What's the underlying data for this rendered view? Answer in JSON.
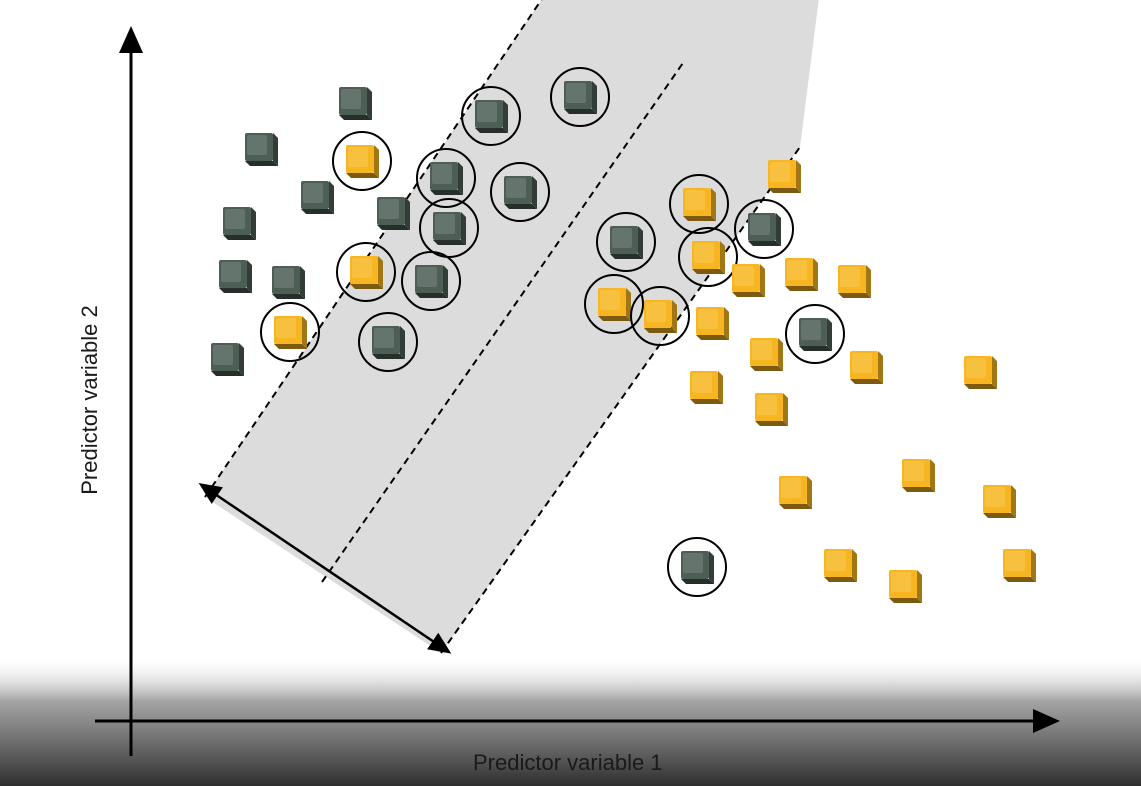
{
  "axes": {
    "x_label": "Predictor variable 1",
    "y_label": "Predictor variable 2"
  },
  "colors": {
    "dark_class": "#4d5e54",
    "yellow_class": "#f7b521",
    "margin_band": "#dcdcdc",
    "axis": "#000000",
    "background_bottom": "#2e2e2e"
  },
  "icons": {
    "dark_point": "dark-green-cube-icon",
    "yellow_point": "yellow-cube-icon",
    "circle": "support-vector-circle"
  }
}
